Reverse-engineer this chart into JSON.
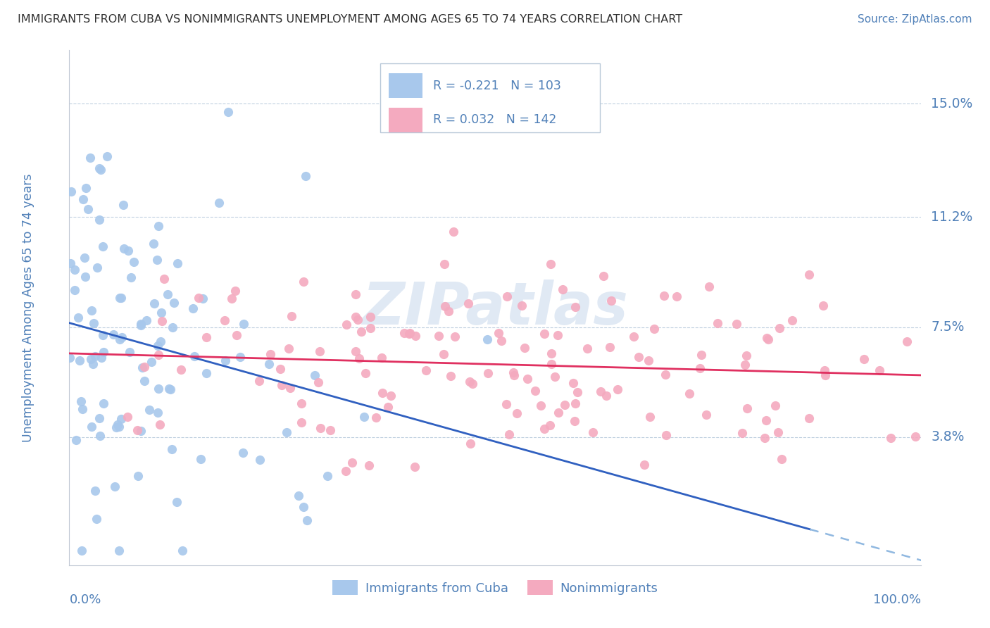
{
  "title": "IMMIGRANTS FROM CUBA VS NONIMMIGRANTS UNEMPLOYMENT AMONG AGES 65 TO 74 YEARS CORRELATION CHART",
  "source": "Source: ZipAtlas.com",
  "ylabel": "Unemployment Among Ages 65 to 74 years",
  "yticks": [
    0.0,
    0.038,
    0.075,
    0.112,
    0.15
  ],
  "ytick_labels": [
    "",
    "3.8%",
    "7.5%",
    "11.2%",
    "15.0%"
  ],
  "xlim": [
    0.0,
    1.0
  ],
  "ylim": [
    -0.005,
    0.168
  ],
  "blue_N": 103,
  "pink_N": 142,
  "blue_R": -0.221,
  "pink_R": 0.032,
  "blue_color": "#a8c8ec",
  "pink_color": "#f4aabf",
  "trend_blue": "#3060c0",
  "trend_pink": "#e03060",
  "trend_dash_blue": "#90b8e0",
  "grid_color": "#c0d0e0",
  "background": "#ffffff",
  "title_color": "#303030",
  "label_color": "#5080b8",
  "watermark_color": "#c8d8ec",
  "seed_blue": 12,
  "seed_pink": 7
}
